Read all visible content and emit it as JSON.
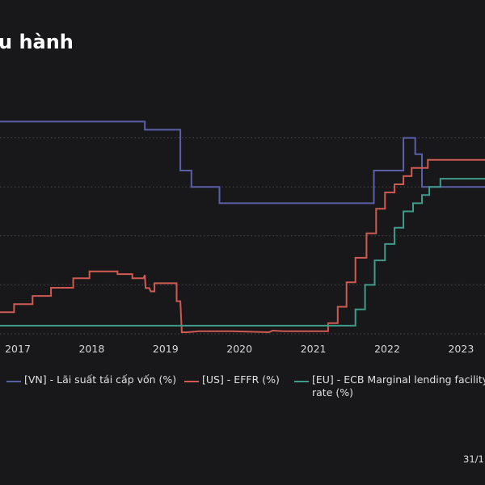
{
  "title": "u hành",
  "footer": {
    "date": "31/1"
  },
  "colors": {
    "background": "#18181a",
    "grid": "#4a4a4a"
  },
  "chart_data": {
    "type": "line",
    "xlim": [
      2016.75,
      2023.35
    ],
    "ylim": [
      -0.5,
      7.0
    ],
    "x_ticks": [
      {
        "value": 2017,
        "label": "2017"
      },
      {
        "value": 2018,
        "label": "2018"
      },
      {
        "value": 2019,
        "label": "2019"
      },
      {
        "value": 2020,
        "label": "2020"
      },
      {
        "value": 2021,
        "label": "2021"
      },
      {
        "value": 2022,
        "label": "2022"
      },
      {
        "value": 2023,
        "label": "2023"
      }
    ],
    "y_gridlines": [
      0,
      1.5,
      3,
      4.5,
      6
    ],
    "grid": true,
    "legend_placement": "bottom",
    "series": [
      {
        "name": "[VN] - Lãi suất tái cấp vốn (%)",
        "color": "#5a5fa8",
        "step": true,
        "points": [
          [
            2016.75,
            6.5
          ],
          [
            2018.72,
            6.25
          ],
          [
            2019.2,
            5.0
          ],
          [
            2019.35,
            4.5
          ],
          [
            2019.73,
            4.0
          ],
          [
            2021.73,
            4.0
          ],
          [
            2021.82,
            5.0
          ],
          [
            2022.22,
            6.0
          ],
          [
            2022.38,
            5.5
          ],
          [
            2022.47,
            4.5
          ],
          [
            2023.35,
            4.5
          ]
        ]
      },
      {
        "name": "[US] - EFFR (%)",
        "color": "#d05a52",
        "step": false,
        "points": [
          [
            2016.75,
            0.66
          ],
          [
            2016.95,
            0.66
          ],
          [
            2016.95,
            0.91
          ],
          [
            2017.2,
            0.91
          ],
          [
            2017.2,
            1.16
          ],
          [
            2017.45,
            1.16
          ],
          [
            2017.45,
            1.41
          ],
          [
            2017.75,
            1.41
          ],
          [
            2017.75,
            1.7
          ],
          [
            2017.97,
            1.7
          ],
          [
            2017.97,
            1.91
          ],
          [
            2018.35,
            1.91
          ],
          [
            2018.35,
            1.83
          ],
          [
            2018.55,
            1.83
          ],
          [
            2018.55,
            1.7
          ],
          [
            2018.7,
            1.7
          ],
          [
            2018.72,
            1.8
          ],
          [
            2018.73,
            1.4
          ],
          [
            2018.78,
            1.4
          ],
          [
            2018.8,
            1.3
          ],
          [
            2018.85,
            1.3
          ],
          [
            2018.85,
            1.55
          ],
          [
            2019.15,
            1.55
          ],
          [
            2019.15,
            1.0
          ],
          [
            2019.2,
            1.0
          ],
          [
            2019.22,
            0.05
          ],
          [
            2019.3,
            0.05
          ],
          [
            2019.45,
            0.08
          ],
          [
            2019.9,
            0.08
          ],
          [
            2020.4,
            0.05
          ],
          [
            2020.45,
            0.1
          ],
          [
            2020.6,
            0.08
          ],
          [
            2021.2,
            0.08
          ],
          [
            2021.2,
            0.33
          ],
          [
            2021.33,
            0.33
          ],
          [
            2021.33,
            0.83
          ],
          [
            2021.45,
            0.83
          ],
          [
            2021.45,
            1.58
          ],
          [
            2021.57,
            1.58
          ],
          [
            2021.57,
            2.33
          ],
          [
            2021.72,
            2.33
          ],
          [
            2021.72,
            3.08
          ],
          [
            2021.85,
            3.08
          ],
          [
            2021.85,
            3.83
          ],
          [
            2021.97,
            3.83
          ],
          [
            2021.97,
            4.33
          ],
          [
            2022.1,
            4.33
          ],
          [
            2022.1,
            4.58
          ],
          [
            2022.22,
            4.58
          ],
          [
            2022.22,
            4.83
          ],
          [
            2022.33,
            4.83
          ],
          [
            2022.33,
            5.08
          ],
          [
            2022.55,
            5.08
          ],
          [
            2022.55,
            5.33
          ],
          [
            2023.35,
            5.33
          ]
        ]
      },
      {
        "name": "[EU] - ECB Marginal lending facility rate (%)",
        "color": "#3f9b8a",
        "step": true,
        "points": [
          [
            2016.75,
            0.25
          ],
          [
            2021.57,
            0.25
          ],
          [
            2021.57,
            0.75
          ],
          [
            2021.7,
            0.75
          ],
          [
            2021.7,
            1.5
          ],
          [
            2021.83,
            1.5
          ],
          [
            2021.83,
            2.25
          ],
          [
            2021.97,
            2.25
          ],
          [
            2021.97,
            2.75
          ],
          [
            2022.1,
            2.75
          ],
          [
            2022.1,
            3.25
          ],
          [
            2022.22,
            3.25
          ],
          [
            2022.22,
            3.75
          ],
          [
            2022.35,
            3.75
          ],
          [
            2022.35,
            4.0
          ],
          [
            2022.47,
            4.0
          ],
          [
            2022.47,
            4.25
          ],
          [
            2022.57,
            4.25
          ],
          [
            2022.57,
            4.5
          ],
          [
            2022.72,
            4.5
          ],
          [
            2022.72,
            4.75
          ],
          [
            2023.35,
            4.75
          ]
        ]
      }
    ],
    "legend": [
      {
        "label": "[VN] - Lãi suất tái cấp vốn (%)",
        "color": "#5a5fa8"
      },
      {
        "label": "[US] - EFFR (%)",
        "color": "#d05a52"
      },
      {
        "label_line1": "[EU] - ECB Marginal lending facility",
        "label_line2": "rate (%)",
        "color": "#3f9b8a"
      }
    ]
  }
}
